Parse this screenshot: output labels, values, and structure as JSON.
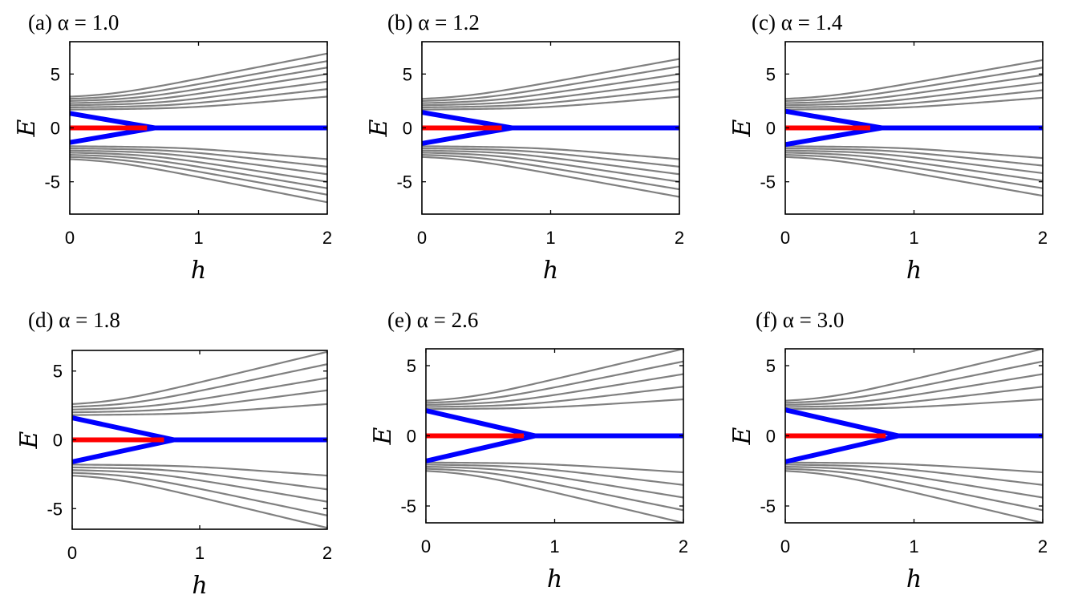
{
  "colors": {
    "bulk": "#808080",
    "zero_mode": "#ff0000",
    "edge_mode": "#0000ff"
  },
  "chart_data": [
    {
      "type": "line",
      "title": "(a) α = 1.0",
      "xlabel": "h",
      "ylabel": "E",
      "xlim": [
        0,
        2
      ],
      "ylim": [
        -8,
        8
      ],
      "xticks": [
        "0",
        "1",
        "2"
      ],
      "yticks": [
        "-5",
        "0",
        "5"
      ],
      "grid": false,
      "series": [
        {
          "role": "bulk",
          "color": "#808080",
          "E_at_h0": [
            1.7,
            1.9,
            2.1,
            2.3,
            2.5,
            2.7,
            2.9
          ],
          "E_at_h2": [
            2.9,
            3.6,
            4.3,
            5.0,
            5.6,
            6.2,
            6.9
          ],
          "symmetric": true
        },
        {
          "role": "edge",
          "color": "#0000ff",
          "x": [
            0,
            0.66,
            2
          ],
          "y_upper": [
            1.35,
            0,
            0
          ],
          "y_lower": [
            -1.35,
            0,
            0
          ]
        },
        {
          "role": "zero",
          "color": "#ff0000",
          "x": [
            0,
            0.6
          ],
          "y": [
            0,
            0
          ]
        }
      ]
    },
    {
      "type": "line",
      "title": "(b) α = 1.2",
      "xlabel": "h",
      "ylabel": "E",
      "xlim": [
        0,
        2
      ],
      "ylim": [
        -8,
        8
      ],
      "xticks": [
        "0",
        "1",
        "2"
      ],
      "yticks": [
        "-5",
        "0",
        "5"
      ],
      "grid": false,
      "series": [
        {
          "role": "bulk",
          "color": "#808080",
          "E_at_h0": [
            1.7,
            1.9,
            2.1,
            2.3,
            2.5,
            2.7
          ],
          "E_at_h2": [
            2.9,
            3.6,
            4.3,
            5.0,
            5.7,
            6.4
          ],
          "symmetric": true
        },
        {
          "role": "edge",
          "color": "#0000ff",
          "x": [
            0,
            0.7,
            2
          ],
          "y_upper": [
            1.45,
            0,
            0
          ],
          "y_lower": [
            -1.45,
            0,
            0
          ]
        },
        {
          "role": "zero",
          "color": "#ff0000",
          "x": [
            0,
            0.62
          ],
          "y": [
            0,
            0
          ]
        }
      ]
    },
    {
      "type": "line",
      "title": "(c) α = 1.4",
      "xlabel": "h",
      "ylabel": "E",
      "xlim": [
        0,
        2
      ],
      "ylim": [
        -8,
        8
      ],
      "xticks": [
        "0",
        "1",
        "2"
      ],
      "yticks": [
        "-5",
        "0",
        "5"
      ],
      "grid": false,
      "series": [
        {
          "role": "bulk",
          "color": "#808080",
          "E_at_h0": [
            1.7,
            1.9,
            2.1,
            2.3,
            2.5,
            2.7
          ],
          "E_at_h2": [
            2.8,
            3.5,
            4.2,
            4.9,
            5.6,
            6.3
          ],
          "symmetric": true
        },
        {
          "role": "edge",
          "color": "#0000ff",
          "x": [
            0,
            0.75,
            2
          ],
          "y_upper": [
            1.55,
            0,
            0
          ],
          "y_lower": [
            -1.55,
            0,
            0
          ]
        },
        {
          "role": "zero",
          "color": "#ff0000",
          "x": [
            0,
            0.66
          ],
          "y": [
            0,
            0
          ]
        }
      ]
    },
    {
      "type": "line",
      "title": "(d) α = 1.8",
      "xlabel": "h",
      "ylabel": "E",
      "xlim": [
        0,
        2
      ],
      "ylim": [
        -6.5,
        6.5
      ],
      "xticks": [
        "0",
        "1",
        "2"
      ],
      "yticks": [
        "-5",
        "0",
        "5"
      ],
      "grid": false,
      "series": [
        {
          "role": "bulk",
          "color": "#808080",
          "E_at_h0": [
            1.8,
            2.0,
            2.2,
            2.4,
            2.6
          ],
          "E_at_h2": [
            2.6,
            3.6,
            4.5,
            5.5,
            6.4
          ],
          "symmetric": true
        },
        {
          "role": "edge",
          "color": "#0000ff",
          "x": [
            0,
            0.8,
            2
          ],
          "y_upper": [
            1.6,
            0,
            0
          ],
          "y_lower": [
            -1.6,
            0,
            0
          ]
        },
        {
          "role": "zero",
          "color": "#ff0000",
          "x": [
            0,
            0.72
          ],
          "y": [
            0,
            0
          ]
        }
      ]
    },
    {
      "type": "line",
      "title": "(e) α = 2.6",
      "xlabel": "h",
      "ylabel": "E",
      "xlim": [
        0,
        2
      ],
      "ylim": [
        -6.2,
        6.2
      ],
      "xticks": [
        "0",
        "1",
        "2"
      ],
      "yticks": [
        "-5",
        "0",
        "5"
      ],
      "grid": false,
      "series": [
        {
          "role": "bulk",
          "color": "#808080",
          "E_at_h0": [
            1.9,
            2.05,
            2.2,
            2.35,
            2.5
          ],
          "E_at_h2": [
            2.6,
            3.5,
            4.4,
            5.3,
            6.2
          ],
          "symmetric": true
        },
        {
          "role": "edge",
          "color": "#0000ff",
          "x": [
            0,
            0.85,
            2
          ],
          "y_upper": [
            1.8,
            0,
            0
          ],
          "y_lower": [
            -1.8,
            0,
            0
          ]
        },
        {
          "role": "zero",
          "color": "#ff0000",
          "x": [
            0,
            0.76
          ],
          "y": [
            0,
            0
          ]
        }
      ]
    },
    {
      "type": "line",
      "title": "(f) α = 3.0",
      "xlabel": "h",
      "ylabel": "E",
      "xlim": [
        0,
        2
      ],
      "ylim": [
        -6.2,
        6.2
      ],
      "xticks": [
        "0",
        "1",
        "2"
      ],
      "yticks": [
        "-5",
        "0",
        "5"
      ],
      "grid": false,
      "series": [
        {
          "role": "bulk",
          "color": "#808080",
          "E_at_h0": [
            1.9,
            2.05,
            2.2,
            2.35,
            2.5
          ],
          "E_at_h2": [
            2.6,
            3.5,
            4.4,
            5.3,
            6.2
          ],
          "symmetric": true
        },
        {
          "role": "edge",
          "color": "#0000ff",
          "x": [
            0,
            0.88,
            2
          ],
          "y_upper": [
            1.85,
            0,
            0
          ],
          "y_lower": [
            -1.85,
            0,
            0
          ]
        },
        {
          "role": "zero",
          "color": "#ff0000",
          "x": [
            0,
            0.78
          ],
          "y": [
            0,
            0
          ]
        }
      ]
    }
  ]
}
